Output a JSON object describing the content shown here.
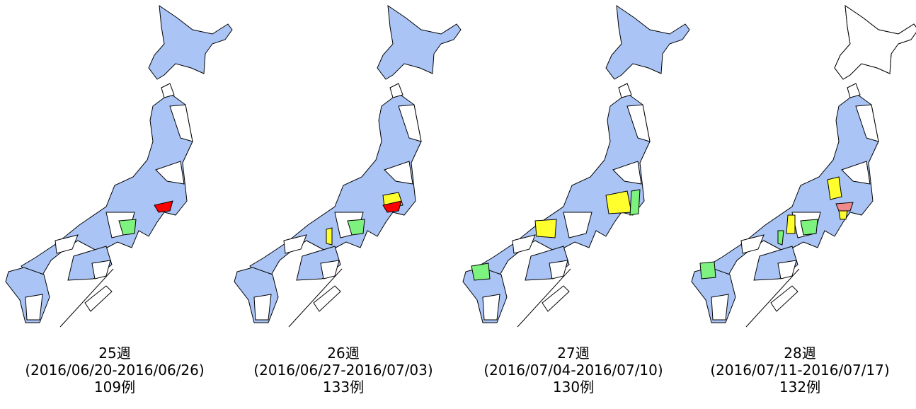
{
  "maps": [
    {
      "week": "25週",
      "period": "(2016/06/20-2016/06/26)",
      "cases": "109例"
    },
    {
      "week": "26週",
      "period": "(2016/06/27-2016/07/03)",
      "cases": "133例"
    },
    {
      "week": "27週",
      "period": "(2016/07/04-2016/07/10)",
      "cases": "130例"
    },
    {
      "week": "28週",
      "period": "(2016/07/11-2016/07/17)",
      "cases": "132例"
    }
  ]
}
